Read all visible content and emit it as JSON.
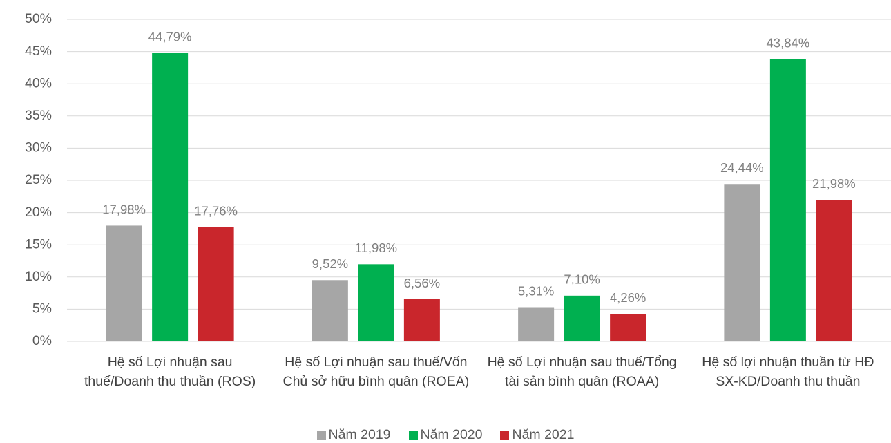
{
  "chart_data": {
    "type": "bar",
    "categories": [
      "Hệ số Lợi nhuận sau thuế/Doanh thu thuần (ROS)",
      "Hệ số Lợi nhuận sau thuế/Vốn Chủ sở hữu bình quân (ROEA)",
      "Hệ số Lợi nhuận sau thuế/Tổng tài sản bình quân (ROAA)",
      "Hệ số lợi nhuận thuần từ HĐ SX-KD/Doanh thu thuần"
    ],
    "series": [
      {
        "name": "Năm 2019",
        "color": "#a6a6a6",
        "values": [
          17.98,
          9.52,
          5.31,
          24.44
        ],
        "value_labels": [
          "17,98%",
          "9,52%",
          "5,31%",
          "24,44%"
        ]
      },
      {
        "name": "Năm 2020",
        "color": "#00b050",
        "values": [
          44.79,
          11.98,
          7.1,
          43.84
        ],
        "value_labels": [
          "44,79%",
          "11,98%",
          "7,10%",
          "43,84%"
        ]
      },
      {
        "name": "Năm 2021",
        "color": "#c9262c",
        "values": [
          17.76,
          6.56,
          4.26,
          21.98
        ],
        "value_labels": [
          "17,76%",
          "6,56%",
          "4,26%",
          "21,98%"
        ]
      }
    ],
    "ylim": [
      0,
      50
    ],
    "yticks": [
      {
        "value": 0,
        "label": "0%"
      },
      {
        "value": 5,
        "label": "5%"
      },
      {
        "value": 10,
        "label": "10%"
      },
      {
        "value": 15,
        "label": "15%"
      },
      {
        "value": 20,
        "label": "20%"
      },
      {
        "value": 25,
        "label": "25%"
      },
      {
        "value": 30,
        "label": "30%"
      },
      {
        "value": 35,
        "label": "35%"
      },
      {
        "value": 40,
        "label": "40%"
      },
      {
        "value": 45,
        "label": "45%"
      },
      {
        "value": 50,
        "label": "50%"
      }
    ],
    "grid": true,
    "legend": "bottom"
  }
}
